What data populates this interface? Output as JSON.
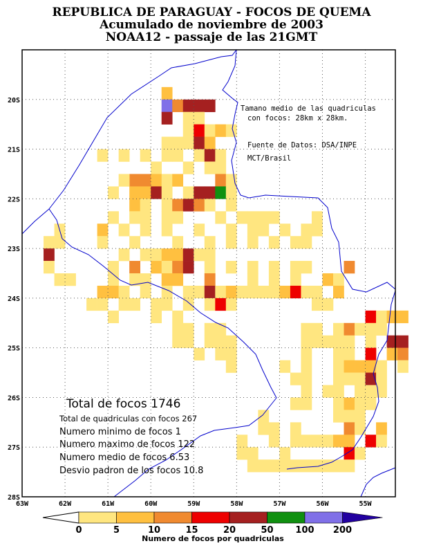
{
  "titles": {
    "line1": "REPUBLICA DE PARAGUAY - FOCOS DE QUEMA",
    "line2": "Acumulado de noviembre de 2003",
    "line3": "NOAA12 - passaje de las 21GMT"
  },
  "annotations": {
    "grid_size": "Tamano medio de las quadriculas",
    "grid_size_2": "con focos: 28km x 28km.",
    "source": "Fuente de Datos: DSA/INPE",
    "source_2": "MCT/Brasil"
  },
  "stats": {
    "total": "Total de focos 1746",
    "cells": "Total de quadriculas con focos 267",
    "min": "Numero minimo de focos 1",
    "max": "Numero maximo de focos 122",
    "mean": "Numero medio de focos 6.53",
    "std": "Desvio padron de los focos 10.8"
  },
  "colors": {
    "c1": "#FFE680",
    "c2": "#FFC040",
    "c3": "#F08A30",
    "c4": "#EE0000",
    "c5": "#A52020",
    "c6": "#109010",
    "c7": "#8070E8",
    "c8": "#2200A0",
    "border": "#0000CC"
  },
  "axes": {
    "lon_min": -63,
    "lon_max": -54.3,
    "lat_min": -28,
    "lat_max": -19,
    "lon_ticks": [
      "63W",
      "62W",
      "61W",
      "60W",
      "59W",
      "58W",
      "57W",
      "56W",
      "55W"
    ],
    "lat_ticks": [
      "20S",
      "21S",
      "22S",
      "23S",
      "24S",
      "25S",
      "26S",
      "27S",
      "28S"
    ]
  },
  "colorbar": {
    "ticks": [
      "0",
      "5",
      "10",
      "15",
      "20",
      "50",
      "100",
      "200"
    ],
    "title": "Numero de focos por quadriculas"
  },
  "chart_data": {
    "type": "heatmap",
    "title": "REPUBLICA DE PARAGUAY - FOCOS DE QUEMA",
    "cell_size_deg": 0.25,
    "cell_ref": "lon_start, lat_start (north edge of cell), class 1-8",
    "classes": [
      "1-5",
      "5-10",
      "10-15",
      "15-20",
      "20-50",
      "50-100",
      "100-200",
      "200+"
    ],
    "cells": [
      [
        -59.75,
        -19.75,
        2
      ],
      [
        -59.75,
        -20.0,
        7
      ],
      [
        -59.5,
        -20.0,
        3
      ],
      [
        -59.25,
        -20.0,
        5
      ],
      [
        -59.0,
        -20.0,
        5
      ],
      [
        -58.75,
        -20.0,
        5
      ],
      [
        -59.75,
        -20.25,
        5
      ],
      [
        -59.25,
        -20.25,
        1
      ],
      [
        -59.0,
        -20.25,
        1
      ],
      [
        -59.25,
        -20.5,
        1
      ],
      [
        -59.0,
        -20.5,
        4
      ],
      [
        -58.75,
        -20.5,
        1
      ],
      [
        -58.5,
        -20.5,
        2
      ],
      [
        -58.25,
        -20.5,
        1
      ],
      [
        -59.75,
        -20.75,
        1
      ],
      [
        -59.5,
        -20.75,
        1
      ],
      [
        -59.25,
        -20.75,
        1
      ],
      [
        -59.0,
        -20.75,
        5
      ],
      [
        -58.75,
        -20.75,
        2
      ],
      [
        -60.25,
        -21.0,
        1
      ],
      [
        -59.75,
        -21.0,
        1
      ],
      [
        -59.5,
        -21.0,
        1
      ],
      [
        -59.0,
        -21.0,
        1
      ],
      [
        -58.75,
        -21.0,
        5
      ],
      [
        -58.5,
        -21.0,
        1
      ],
      [
        -61.25,
        -21.0,
        1
      ],
      [
        -60.75,
        -21.0,
        1
      ],
      [
        -60.0,
        -21.25,
        1
      ],
      [
        -59.25,
        -21.25,
        1
      ],
      [
        -58.75,
        -21.25,
        1
      ],
      [
        -58.5,
        -21.25,
        1
      ],
      [
        -60.5,
        -21.5,
        3
      ],
      [
        -60.25,
        -21.5,
        3
      ],
      [
        -60.0,
        -21.5,
        2
      ],
      [
        -59.75,
        -21.5,
        1
      ],
      [
        -59.5,
        -21.5,
        2
      ],
      [
        -58.5,
        -21.5,
        3
      ],
      [
        -58.25,
        -21.5,
        1
      ],
      [
        -60.75,
        -21.5,
        1
      ],
      [
        -61.0,
        -21.75,
        1
      ],
      [
        -60.5,
        -21.75,
        2
      ],
      [
        -60.25,
        -21.75,
        2
      ],
      [
        -60.0,
        -21.75,
        5
      ],
      [
        -59.75,
        -21.75,
        1
      ],
      [
        -59.25,
        -21.75,
        1
      ],
      [
        -59.0,
        -21.75,
        5
      ],
      [
        -58.75,
        -21.75,
        5
      ],
      [
        -58.5,
        -21.75,
        6
      ],
      [
        -58.25,
        -21.75,
        1
      ],
      [
        -60.5,
        -22.0,
        2
      ],
      [
        -60.25,
        -22.0,
        1
      ],
      [
        -59.75,
        -22.0,
        1
      ],
      [
        -59.5,
        -22.0,
        3
      ],
      [
        -59.25,
        -22.0,
        5
      ],
      [
        -59.0,
        -22.0,
        3
      ],
      [
        -58.75,
        -22.0,
        1
      ],
      [
        -58.25,
        -22.0,
        1
      ],
      [
        -61.0,
        -22.25,
        1
      ],
      [
        -60.5,
        -22.25,
        1
      ],
      [
        -60.25,
        -22.25,
        1
      ],
      [
        -59.75,
        -22.25,
        1
      ],
      [
        -59.5,
        -22.25,
        1
      ],
      [
        -58.5,
        -22.25,
        1
      ],
      [
        -58.0,
        -22.25,
        1
      ],
      [
        -57.75,
        -22.25,
        1
      ],
      [
        -57.5,
        -22.25,
        1
      ],
      [
        -57.25,
        -22.25,
        1
      ],
      [
        -56.25,
        -22.25,
        1
      ],
      [
        -62.25,
        -22.5,
        1
      ],
      [
        -61.25,
        -22.5,
        2
      ],
      [
        -60.75,
        -22.5,
        1
      ],
      [
        -60.25,
        -22.5,
        1
      ],
      [
        -59.75,
        -22.5,
        1
      ],
      [
        -59.0,
        -22.5,
        1
      ],
      [
        -58.25,
        -22.5,
        1
      ],
      [
        -57.75,
        -22.5,
        1
      ],
      [
        -57.5,
        -22.5,
        1
      ],
      [
        -57.0,
        -22.5,
        1
      ],
      [
        -56.5,
        -22.5,
        1
      ],
      [
        -56.25,
        -22.5,
        1
      ],
      [
        -62.5,
        -22.75,
        1
      ],
      [
        -62.25,
        -22.75,
        1
      ],
      [
        -61.25,
        -22.75,
        1
      ],
      [
        -60.5,
        -22.75,
        1
      ],
      [
        -59.5,
        -22.75,
        1
      ],
      [
        -58.75,
        -22.75,
        1
      ],
      [
        -58.25,
        -22.75,
        1
      ],
      [
        -57.75,
        -22.75,
        1
      ],
      [
        -57.25,
        -22.75,
        1
      ],
      [
        -56.75,
        -22.75,
        1
      ],
      [
        -56.5,
        -22.75,
        1
      ],
      [
        -62.5,
        -23.0,
        5
      ],
      [
        -60.75,
        -23.0,
        1
      ],
      [
        -60.25,
        -23.0,
        1
      ],
      [
        -60.0,
        -23.0,
        1
      ],
      [
        -59.75,
        -23.0,
        2
      ],
      [
        -59.5,
        -23.0,
        2
      ],
      [
        -59.25,
        -23.0,
        5
      ],
      [
        -59.0,
        -23.0,
        1
      ],
      [
        -58.75,
        -23.0,
        1
      ],
      [
        -62.5,
        -23.25,
        1
      ],
      [
        -61.0,
        -23.25,
        1
      ],
      [
        -60.5,
        -23.25,
        3
      ],
      [
        -60.0,
        -23.25,
        2
      ],
      [
        -59.75,
        -23.25,
        1
      ],
      [
        -59.5,
        -23.25,
        3
      ],
      [
        -59.25,
        -23.25,
        5
      ],
      [
        -58.75,
        -23.25,
        1
      ],
      [
        -58.25,
        -23.25,
        1
      ],
      [
        -57.75,
        -23.25,
        1
      ],
      [
        -57.25,
        -23.25,
        1
      ],
      [
        -56.75,
        -23.25,
        1
      ],
      [
        -56.5,
        -23.25,
        1
      ],
      [
        -55.5,
        -23.25,
        3
      ],
      [
        -62.25,
        -23.5,
        1
      ],
      [
        -62.0,
        -23.5,
        1
      ],
      [
        -61.0,
        -23.5,
        1
      ],
      [
        -60.5,
        -23.5,
        1
      ],
      [
        -60.25,
        -23.5,
        1
      ],
      [
        -59.75,
        -23.5,
        2
      ],
      [
        -59.5,
        -23.5,
        2
      ],
      [
        -58.75,
        -23.5,
        3
      ],
      [
        -57.75,
        -23.5,
        1
      ],
      [
        -57.25,
        -23.5,
        1
      ],
      [
        -56.75,
        -23.5,
        1
      ],
      [
        -56.0,
        -23.5,
        2
      ],
      [
        -55.75,
        -23.5,
        1
      ],
      [
        -61.25,
        -23.75,
        2
      ],
      [
        -61.0,
        -23.75,
        2
      ],
      [
        -60.75,
        -23.75,
        1
      ],
      [
        -60.25,
        -23.75,
        1
      ],
      [
        -59.75,
        -23.75,
        1
      ],
      [
        -59.25,
        -23.75,
        1
      ],
      [
        -59.0,
        -23.75,
        1
      ],
      [
        -58.75,
        -23.75,
        5
      ],
      [
        -58.5,
        -23.75,
        1
      ],
      [
        -58.25,
        -23.75,
        2
      ],
      [
        -58.0,
        -23.75,
        1
      ],
      [
        -57.75,
        -23.75,
        1
      ],
      [
        -57.5,
        -23.75,
        1
      ],
      [
        -57.25,
        -23.75,
        1
      ],
      [
        -57.0,
        -23.75,
        2
      ],
      [
        -56.75,
        -23.75,
        4
      ],
      [
        -56.5,
        -23.75,
        1
      ],
      [
        -56.25,
        -23.75,
        1
      ],
      [
        -55.75,
        -23.75,
        2
      ],
      [
        -61.5,
        -24.0,
        1
      ],
      [
        -61.25,
        -24.0,
        1
      ],
      [
        -60.75,
        -24.0,
        1
      ],
      [
        -60.5,
        -24.0,
        1
      ],
      [
        -60.0,
        -24.0,
        1
      ],
      [
        -59.75,
        -24.0,
        1
      ],
      [
        -59.25,
        -24.0,
        1
      ],
      [
        -58.75,
        -24.0,
        1
      ],
      [
        -58.5,
        -24.0,
        4
      ],
      [
        -58.25,
        -24.0,
        1
      ],
      [
        -56.25,
        -24.0,
        1
      ],
      [
        -56.0,
        -24.0,
        1
      ],
      [
        -61.0,
        -24.25,
        1
      ],
      [
        -60.0,
        -24.25,
        1
      ],
      [
        -59.5,
        -24.25,
        1
      ],
      [
        -55.0,
        -24.25,
        4
      ],
      [
        -54.75,
        -24.25,
        1
      ],
      [
        -54.5,
        -24.25,
        2
      ],
      [
        -54.25,
        -24.25,
        2
      ],
      [
        -59.5,
        -24.5,
        1
      ],
      [
        -59.25,
        -24.5,
        1
      ],
      [
        -58.75,
        -24.5,
        1
      ],
      [
        -58.5,
        -24.5,
        1
      ],
      [
        -56.5,
        -24.5,
        1
      ],
      [
        -56.25,
        -24.5,
        1
      ],
      [
        -55.75,
        -24.5,
        1
      ],
      [
        -55.5,
        -24.5,
        3
      ],
      [
        -55.25,
        -24.5,
        1
      ],
      [
        -55.0,
        -24.5,
        1
      ],
      [
        -54.75,
        -24.5,
        1
      ],
      [
        -59.5,
        -24.75,
        1
      ],
      [
        -59.25,
        -24.75,
        1
      ],
      [
        -58.75,
        -24.75,
        1
      ],
      [
        -58.5,
        -24.75,
        1
      ],
      [
        -58.25,
        -24.75,
        1
      ],
      [
        -56.5,
        -24.75,
        1
      ],
      [
        -56.25,
        -24.75,
        1
      ],
      [
        -56.0,
        -24.75,
        1
      ],
      [
        -55.75,
        -24.75,
        1
      ],
      [
        -55.5,
        -24.75,
        1
      ],
      [
        -55.0,
        -24.75,
        1
      ],
      [
        -54.5,
        -24.75,
        5
      ],
      [
        -54.25,
        -24.75,
        5
      ],
      [
        -59.0,
        -25.0,
        1
      ],
      [
        -58.5,
        -25.0,
        1
      ],
      [
        -58.25,
        -25.0,
        1
      ],
      [
        -56.5,
        -25.0,
        1
      ],
      [
        -55.75,
        -25.0,
        1
      ],
      [
        -55.5,
        -25.0,
        1
      ],
      [
        -55.0,
        -25.0,
        4
      ],
      [
        -54.5,
        -25.0,
        2
      ],
      [
        -54.25,
        -25.0,
        3
      ],
      [
        -58.25,
        -25.25,
        1
      ],
      [
        -57.0,
        -25.25,
        1
      ],
      [
        -56.5,
        -25.25,
        1
      ],
      [
        -55.75,
        -25.25,
        1
      ],
      [
        -55.5,
        -25.25,
        2
      ],
      [
        -55.25,
        -25.25,
        2
      ],
      [
        -55.0,
        -25.25,
        2
      ],
      [
        -54.75,
        -25.25,
        1
      ],
      [
        -54.25,
        -25.25,
        1
      ],
      [
        -56.75,
        -25.5,
        1
      ],
      [
        -56.5,
        -25.5,
        1
      ],
      [
        -55.75,
        -25.5,
        1
      ],
      [
        -55.5,
        -25.5,
        1
      ],
      [
        -55.25,
        -25.5,
        1
      ],
      [
        -55.0,
        -25.5,
        5
      ],
      [
        -54.75,
        -25.5,
        1
      ],
      [
        -56.5,
        -25.75,
        1
      ],
      [
        -56.0,
        -25.75,
        1
      ],
      [
        -55.75,
        -25.75,
        1
      ],
      [
        -55.25,
        -25.75,
        1
      ],
      [
        -55.0,
        -25.75,
        1
      ],
      [
        -54.75,
        -25.75,
        1
      ],
      [
        -56.75,
        -26.0,
        1
      ],
      [
        -56.5,
        -26.0,
        1
      ],
      [
        -55.75,
        -26.0,
        1
      ],
      [
        -55.5,
        -26.0,
        2
      ],
      [
        -55.25,
        -26.0,
        1
      ],
      [
        -55.0,
        -26.0,
        1
      ],
      [
        -57.5,
        -26.25,
        1
      ],
      [
        -55.75,
        -26.25,
        1
      ],
      [
        -55.5,
        -26.25,
        1
      ],
      [
        -55.25,
        -26.25,
        1
      ],
      [
        -57.5,
        -26.5,
        1
      ],
      [
        -57.25,
        -26.5,
        1
      ],
      [
        -56.75,
        -26.5,
        1
      ],
      [
        -55.5,
        -26.5,
        3
      ],
      [
        -55.25,
        -26.5,
        1
      ],
      [
        -54.75,
        -26.5,
        2
      ],
      [
        -58.0,
        -26.75,
        1
      ],
      [
        -57.25,
        -26.75,
        1
      ],
      [
        -56.75,
        -26.75,
        1
      ],
      [
        -56.5,
        -26.75,
        1
      ],
      [
        -56.25,
        -26.75,
        1
      ],
      [
        -56.0,
        -26.75,
        1
      ],
      [
        -55.75,
        -26.75,
        2
      ],
      [
        -55.5,
        -26.75,
        2
      ],
      [
        -55.0,
        -26.75,
        4
      ],
      [
        -54.75,
        -26.75,
        1
      ],
      [
        -58.0,
        -27.0,
        1
      ],
      [
        -57.75,
        -27.0,
        1
      ],
      [
        -57.0,
        -27.0,
        1
      ],
      [
        -55.5,
        -27.0,
        4
      ],
      [
        -55.25,
        -27.0,
        1
      ],
      [
        -57.75,
        -27.25,
        1
      ],
      [
        -57.5,
        -27.25,
        1
      ],
      [
        -57.25,
        -27.25,
        1
      ],
      [
        -57.0,
        -27.25,
        1
      ],
      [
        -56.75,
        -27.25,
        1
      ],
      [
        -56.5,
        -27.25,
        1
      ],
      [
        -56.25,
        -27.25,
        1
      ],
      [
        -56.0,
        -27.25,
        1
      ],
      [
        -55.75,
        -27.25,
        1
      ],
      [
        -55.5,
        -27.25,
        1
      ]
    ]
  }
}
